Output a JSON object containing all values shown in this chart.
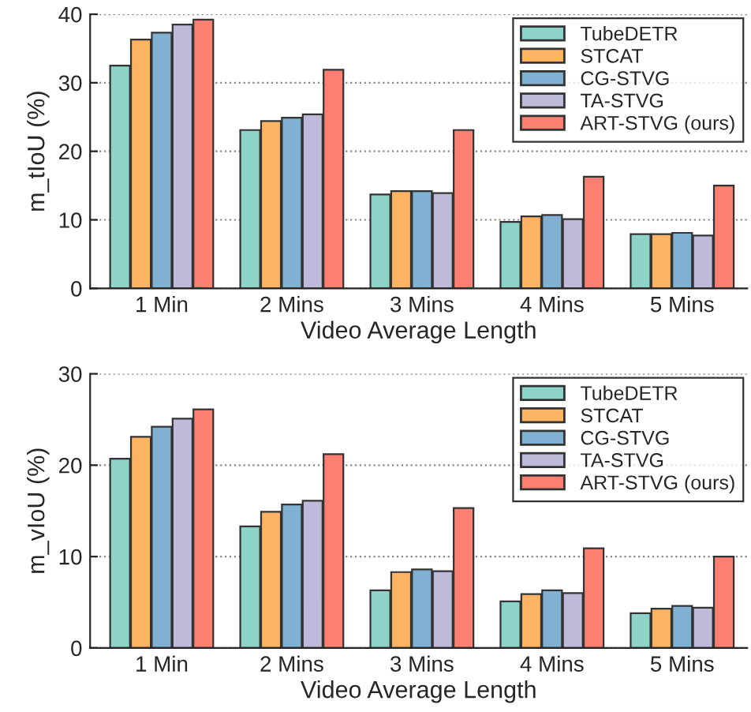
{
  "chart_data": [
    {
      "type": "bar",
      "categories": [
        "1 Min",
        "2 Mins",
        "3 Mins",
        "4 Mins",
        "5 Mins"
      ],
      "xlabel": "Video Average Length",
      "ylabel": "m_tIoU (%)",
      "ylim": [
        0,
        40
      ],
      "yticks": [
        0,
        10,
        20,
        30,
        40
      ],
      "grid": "y",
      "legend": "top right",
      "series": [
        {
          "name": "TubeDETR",
          "color": "#8dd3c7",
          "values": [
            32.5,
            23.1,
            13.7,
            9.7,
            7.9
          ]
        },
        {
          "name": "STCAT",
          "color": "#fdb462",
          "values": [
            36.3,
            24.4,
            14.2,
            10.5,
            7.9
          ]
        },
        {
          "name": "CG-STVG",
          "color": "#80b1d3",
          "values": [
            37.3,
            24.9,
            14.2,
            10.7,
            8.1
          ]
        },
        {
          "name": "TA-STVG",
          "color": "#bebada",
          "values": [
            38.5,
            25.4,
            13.9,
            10.1,
            7.7
          ]
        },
        {
          "name": "ART-STVG (ours)",
          "color": "#fb8072",
          "values": [
            39.2,
            31.9,
            23.1,
            16.3,
            15.0
          ]
        }
      ]
    },
    {
      "type": "bar",
      "categories": [
        "1 Min",
        "2 Mins",
        "3 Mins",
        "4 Mins",
        "5 Mins"
      ],
      "xlabel": "Video Average Length",
      "ylabel": "m_vIoU (%)",
      "ylim": [
        0,
        30
      ],
      "yticks": [
        0,
        10,
        20,
        30
      ],
      "grid": "y",
      "legend": "top right",
      "series": [
        {
          "name": "TubeDETR",
          "color": "#8dd3c7",
          "values": [
            20.7,
            13.3,
            6.3,
            5.1,
            3.8
          ]
        },
        {
          "name": "STCAT",
          "color": "#fdb462",
          "values": [
            23.1,
            14.9,
            8.3,
            5.9,
            4.3
          ]
        },
        {
          "name": "CG-STVG",
          "color": "#80b1d3",
          "values": [
            24.2,
            15.7,
            8.6,
            6.3,
            4.6
          ]
        },
        {
          "name": "TA-STVG",
          "color": "#bebada",
          "values": [
            25.1,
            16.1,
            8.4,
            6.0,
            4.4
          ]
        },
        {
          "name": "ART-STVG (ours)",
          "color": "#fb8072",
          "values": [
            26.1,
            21.2,
            15.3,
            10.9,
            10.0
          ]
        }
      ]
    }
  ]
}
